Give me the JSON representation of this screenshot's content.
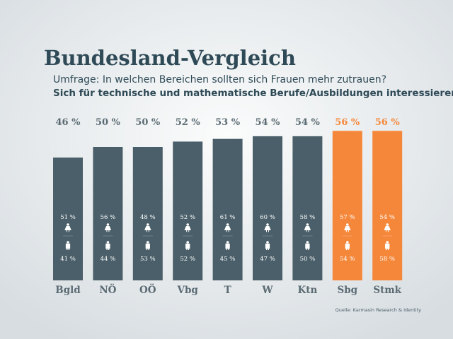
{
  "chart_data": {
    "type": "bar",
    "title": "Bundesland-Vergleich",
    "subtitle": "Umfrage: In welchen Bereichen sollten sich Frauen mehr zutrauen?",
    "subtitle2": "Sich für technische und mathematische Berufe/Ausbildungen interessieren",
    "source": "Quelle: Karmasin Research & Identity",
    "categories": [
      "Bgld",
      "NÖ",
      "OÖ",
      "Vbg",
      "T",
      "W",
      "Ktn",
      "Sbg",
      "Stmk"
    ],
    "values": [
      46,
      50,
      50,
      52,
      53,
      54,
      54,
      56,
      56
    ],
    "value_labels": [
      "46 %",
      "50 %",
      "50 %",
      "52 %",
      "53 %",
      "54 %",
      "54 %",
      "56 %",
      "56 %"
    ],
    "colors": [
      "#4a5f69",
      "#4a5f69",
      "#4a5f69",
      "#4a5f69",
      "#4a5f69",
      "#4a5f69",
      "#4a5f69",
      "#f5873a",
      "#f5873a"
    ],
    "female_values": [
      51,
      56,
      48,
      52,
      61,
      60,
      58,
      57,
      54
    ],
    "female_labels": [
      "51 %",
      "56 %",
      "48 %",
      "52 %",
      "61 %",
      "60 %",
      "58 %",
      "57 %",
      "54 %"
    ],
    "male_values": [
      41,
      44,
      53,
      52,
      45,
      47,
      50,
      54,
      58
    ],
    "male_labels": [
      "41 %",
      "44 %",
      "53 %",
      "52 %",
      "45 %",
      "47 %",
      "50 %",
      "54 %",
      "58 %"
    ]
  }
}
